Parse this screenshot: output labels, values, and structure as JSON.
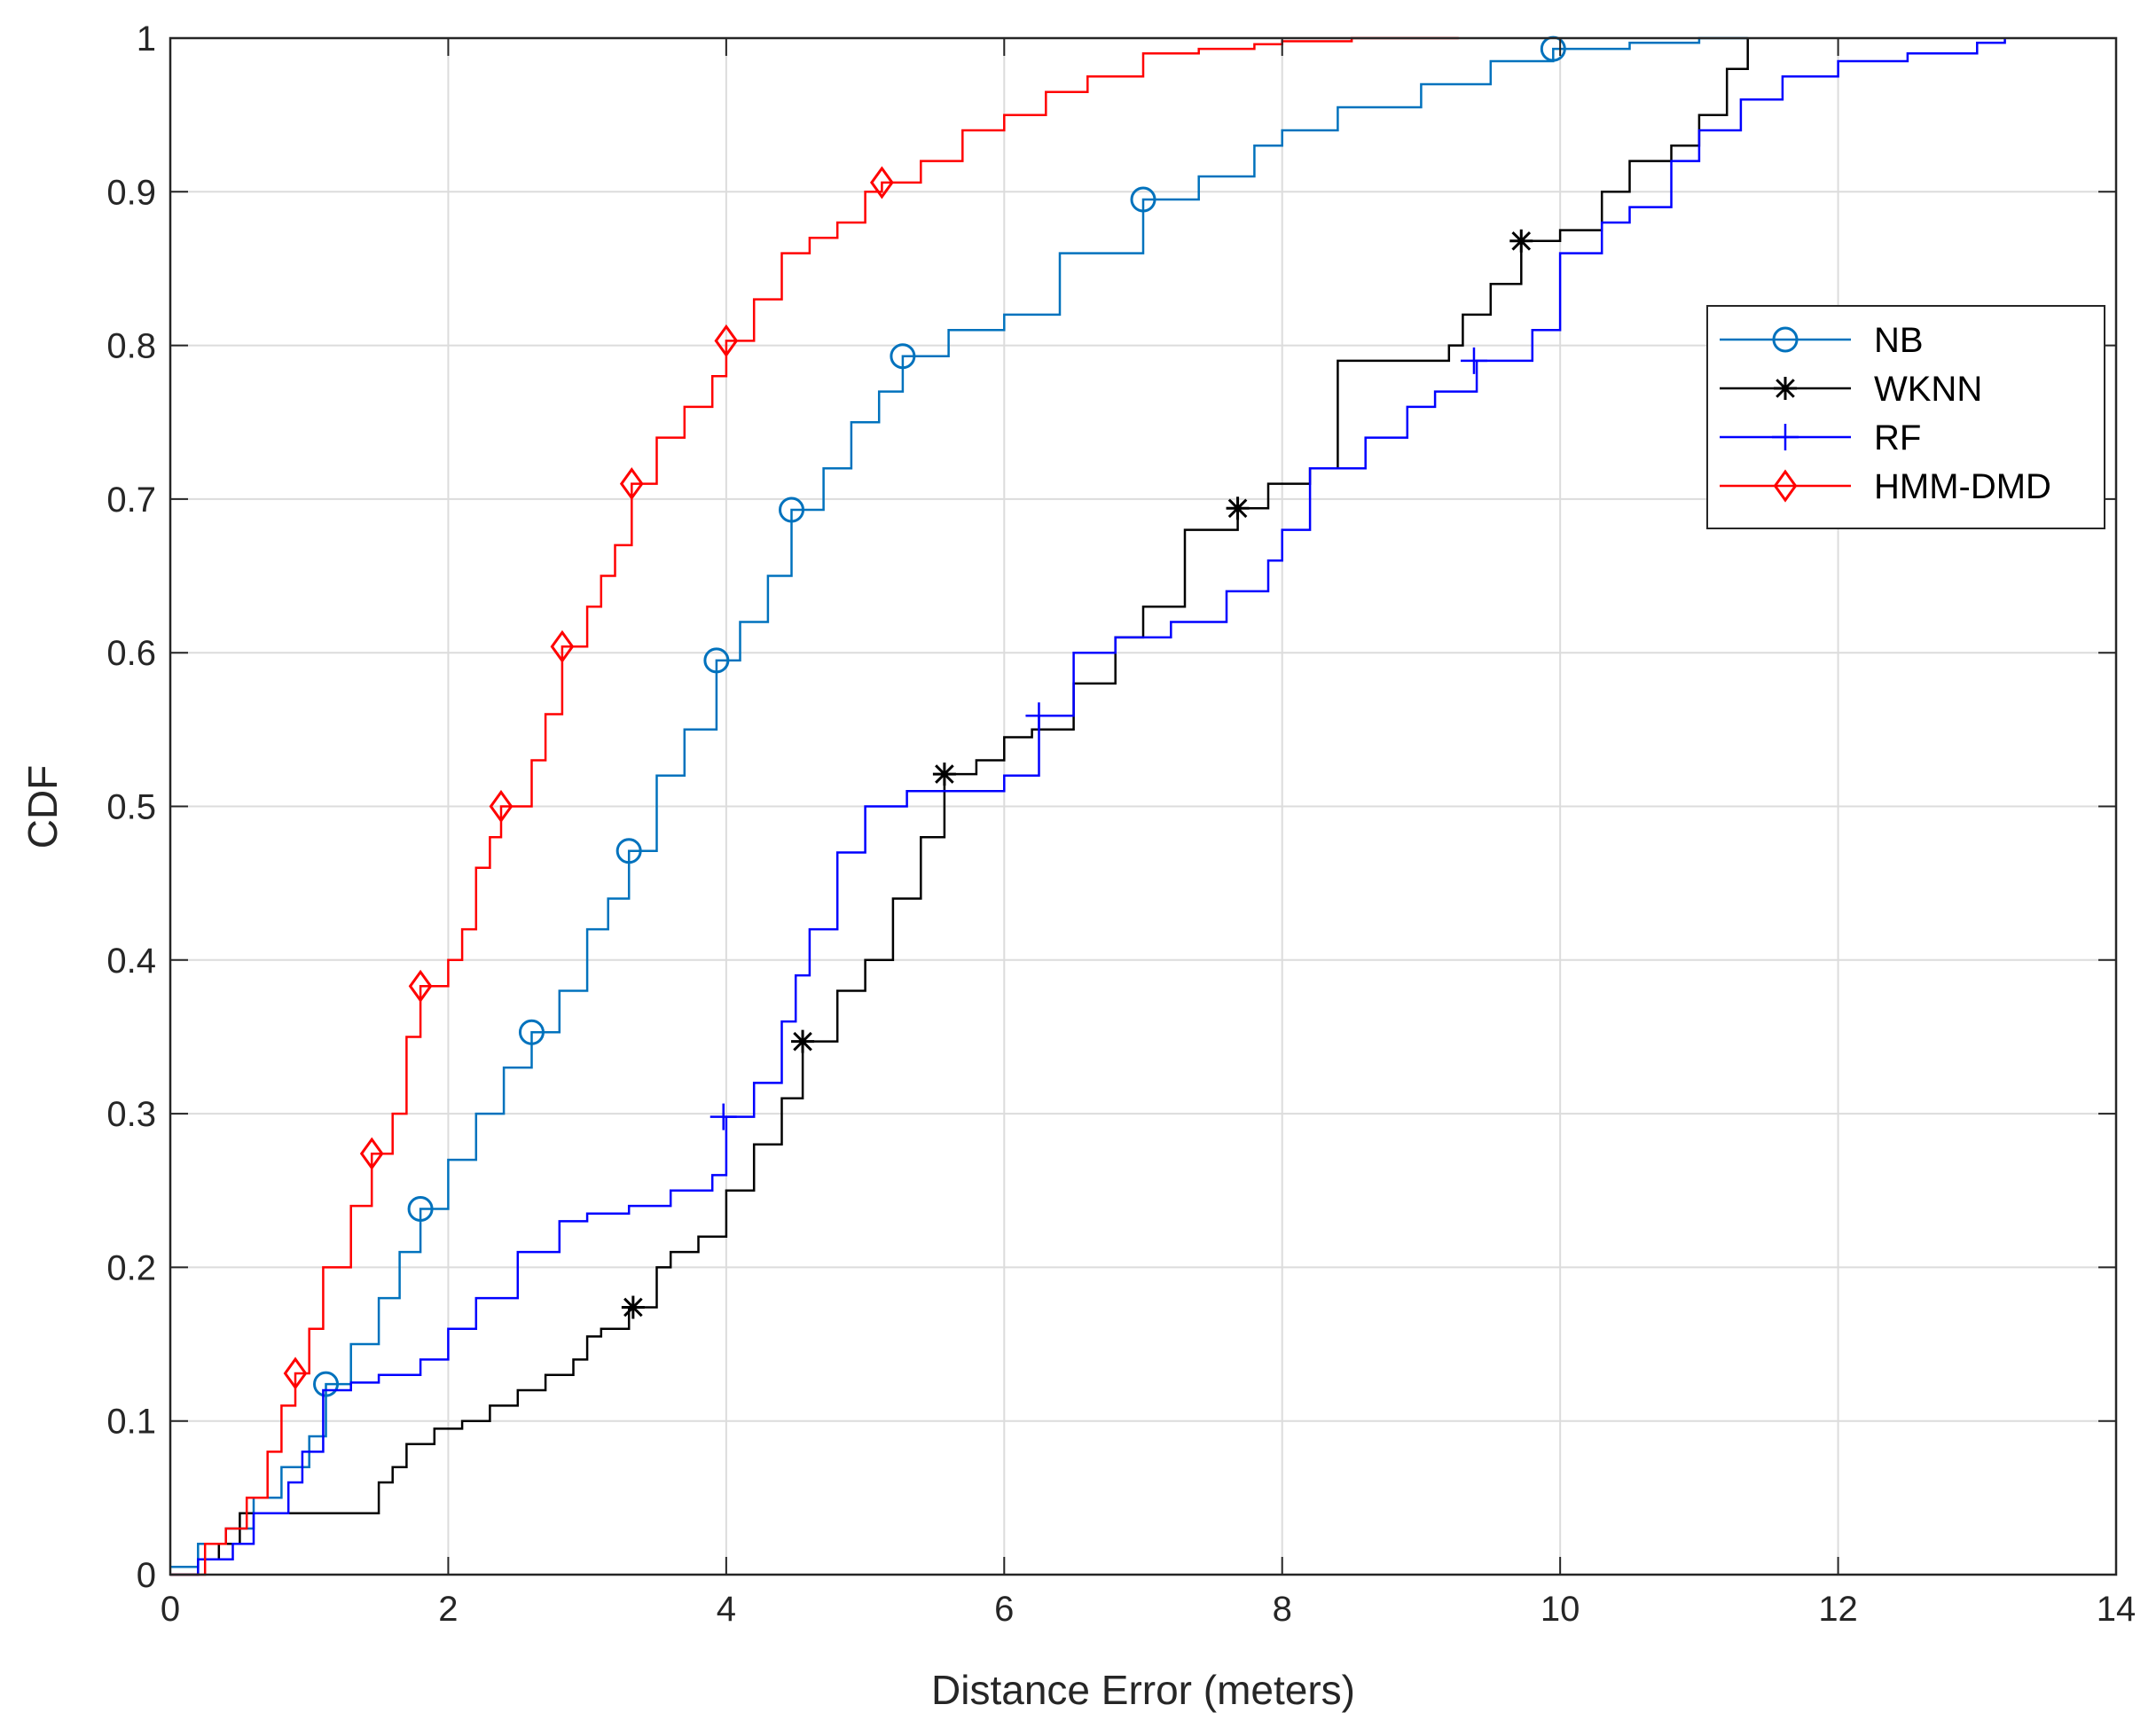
{
  "chart_data": {
    "type": "line",
    "title": "",
    "xlabel": "Distance Error (meters)",
    "ylabel": "CDF",
    "xlim": [
      0,
      14
    ],
    "ylim": [
      0,
      1
    ],
    "grid": true,
    "legend_position": "top-right",
    "xticks": [
      0,
      2,
      4,
      6,
      8,
      10,
      12,
      14
    ],
    "xtick_labels": [
      "0",
      "2",
      "4",
      "6",
      "8",
      "10",
      "12",
      "14"
    ],
    "yticks": [
      0,
      0.1,
      0.2,
      0.3,
      0.4,
      0.5,
      0.6,
      0.7,
      0.8,
      0.9,
      1
    ],
    "ytick_labels": [
      "0",
      "0.1",
      "0.2",
      "0.3",
      "0.4",
      "0.5",
      "0.6",
      "0.7",
      "0.8",
      "0.9",
      "1"
    ],
    "series": [
      {
        "name": "NB",
        "color": "#0072BD",
        "marker": "circle",
        "x": [
          0.0,
          0.2,
          0.4,
          0.6,
          0.8,
          1.0,
          1.12,
          1.3,
          1.5,
          1.65,
          1.8,
          2.0,
          2.2,
          2.4,
          2.6,
          2.8,
          3.0,
          3.15,
          3.3,
          3.5,
          3.7,
          3.93,
          4.1,
          4.3,
          4.47,
          4.7,
          4.9,
          5.1,
          5.27,
          5.6,
          6.0,
          6.4,
          7.0,
          7.4,
          7.8,
          8.0,
          8.4,
          9.0,
          9.5,
          9.95,
          10.5,
          11.0,
          11.35
        ],
        "y": [
          0.005,
          0.02,
          0.03,
          0.05,
          0.07,
          0.09,
          0.124,
          0.15,
          0.18,
          0.21,
          0.238,
          0.27,
          0.3,
          0.33,
          0.353,
          0.38,
          0.42,
          0.44,
          0.471,
          0.52,
          0.55,
          0.595,
          0.62,
          0.65,
          0.693,
          0.72,
          0.75,
          0.77,
          0.793,
          0.81,
          0.82,
          0.86,
          0.895,
          0.91,
          0.93,
          0.94,
          0.955,
          0.97,
          0.985,
          0.993,
          0.997,
          1.0,
          1.0
        ],
        "marker_x": [
          1.12,
          1.8,
          2.6,
          3.3,
          3.93,
          4.47,
          5.27,
          7.0,
          9.95
        ],
        "marker_y": [
          0.124,
          0.238,
          0.353,
          0.471,
          0.595,
          0.693,
          0.793,
          0.895,
          0.993
        ]
      },
      {
        "name": "WKNN",
        "color": "#000000",
        "marker": "asterisk",
        "x": [
          0.0,
          0.2,
          0.35,
          0.5,
          1.4,
          1.5,
          1.6,
          1.7,
          1.9,
          2.1,
          2.3,
          2.5,
          2.7,
          2.9,
          3.0,
          3.1,
          3.3,
          3.5,
          3.6,
          3.8,
          4.0,
          4.2,
          4.4,
          4.55,
          4.8,
          5.0,
          5.2,
          5.4,
          5.57,
          5.8,
          6.0,
          6.2,
          6.5,
          6.8,
          7.0,
          7.3,
          7.68,
          7.9,
          8.2,
          8.4,
          8.7,
          9.2,
          9.3,
          9.5,
          9.72,
          10.0,
          10.1,
          10.3,
          10.5,
          10.8,
          11.0,
          11.2,
          11.35
        ],
        "y": [
          0.0,
          0.01,
          0.02,
          0.04,
          0.04,
          0.06,
          0.07,
          0.085,
          0.095,
          0.1,
          0.11,
          0.12,
          0.13,
          0.14,
          0.155,
          0.16,
          0.174,
          0.2,
          0.21,
          0.22,
          0.25,
          0.28,
          0.31,
          0.347,
          0.38,
          0.4,
          0.44,
          0.48,
          0.521,
          0.53,
          0.545,
          0.55,
          0.58,
          0.61,
          0.63,
          0.68,
          0.694,
          0.71,
          0.72,
          0.79,
          0.79,
          0.8,
          0.82,
          0.84,
          0.868,
          0.875,
          0.875,
          0.9,
          0.92,
          0.93,
          0.95,
          0.98,
          1.0
        ],
        "marker_x": [
          3.33,
          4.55,
          5.57,
          7.68,
          9.72
        ],
        "marker_y": [
          0.174,
          0.347,
          0.521,
          0.694,
          0.868
        ]
      },
      {
        "name": "RF",
        "color": "#0000FF",
        "marker": "plus",
        "x": [
          0.0,
          0.2,
          0.45,
          0.6,
          0.85,
          0.95,
          1.1,
          1.3,
          1.5,
          1.8,
          2.0,
          2.2,
          2.5,
          2.8,
          3.0,
          3.3,
          3.6,
          3.9,
          4.0,
          4.2,
          4.4,
          4.5,
          4.6,
          4.8,
          5.0,
          5.3,
          5.6,
          6.0,
          6.25,
          6.5,
          6.8,
          7.2,
          7.6,
          7.9,
          8.0,
          8.2,
          8.6,
          8.9,
          9.1,
          9.4,
          9.8,
          10.0,
          10.3,
          10.5,
          10.8,
          11.0,
          11.3,
          11.6,
          12.0,
          12.5,
          13.0,
          13.2
        ],
        "y": [
          0.0,
          0.01,
          0.02,
          0.04,
          0.06,
          0.08,
          0.12,
          0.125,
          0.13,
          0.14,
          0.16,
          0.18,
          0.21,
          0.23,
          0.235,
          0.24,
          0.25,
          0.26,
          0.298,
          0.32,
          0.36,
          0.39,
          0.42,
          0.47,
          0.5,
          0.51,
          0.51,
          0.52,
          0.559,
          0.6,
          0.61,
          0.62,
          0.64,
          0.66,
          0.68,
          0.72,
          0.74,
          0.76,
          0.77,
          0.79,
          0.81,
          0.86,
          0.88,
          0.89,
          0.92,
          0.94,
          0.96,
          0.975,
          0.985,
          0.99,
          0.997,
          1.0
        ],
        "marker_x": [
          3.98,
          6.25,
          9.38
        ],
        "marker_y": [
          0.298,
          0.559,
          0.79
        ]
      },
      {
        "name": "HMM-DMD",
        "color": "#FF0000",
        "marker": "diamond",
        "x": [
          0.0,
          0.25,
          0.4,
          0.55,
          0.7,
          0.8,
          0.9,
          1.0,
          1.1,
          1.3,
          1.45,
          1.6,
          1.7,
          1.8,
          2.0,
          2.1,
          2.2,
          2.3,
          2.38,
          2.6,
          2.7,
          2.82,
          3.0,
          3.1,
          3.2,
          3.32,
          3.5,
          3.7,
          3.9,
          4.0,
          4.2,
          4.4,
          4.6,
          4.8,
          5.0,
          5.12,
          5.4,
          5.7,
          6.0,
          6.3,
          6.6,
          7.0,
          7.4,
          7.8,
          8.0,
          8.5,
          9.0,
          9.27
        ],
        "y": [
          0.0,
          0.02,
          0.03,
          0.05,
          0.08,
          0.11,
          0.131,
          0.16,
          0.2,
          0.24,
          0.274,
          0.3,
          0.35,
          0.383,
          0.4,
          0.42,
          0.46,
          0.48,
          0.5,
          0.53,
          0.56,
          0.604,
          0.63,
          0.65,
          0.67,
          0.71,
          0.74,
          0.76,
          0.78,
          0.803,
          0.83,
          0.86,
          0.87,
          0.88,
          0.9,
          0.906,
          0.92,
          0.94,
          0.95,
          0.965,
          0.975,
          0.99,
          0.993,
          0.996,
          0.998,
          1.0,
          1.0,
          1.0
        ],
        "marker_x": [
          0.9,
          1.45,
          1.8,
          2.38,
          2.82,
          3.32,
          4.0,
          5.12
        ],
        "marker_y": [
          0.131,
          0.274,
          0.383,
          0.5,
          0.604,
          0.71,
          0.803,
          0.906
        ]
      }
    ]
  }
}
